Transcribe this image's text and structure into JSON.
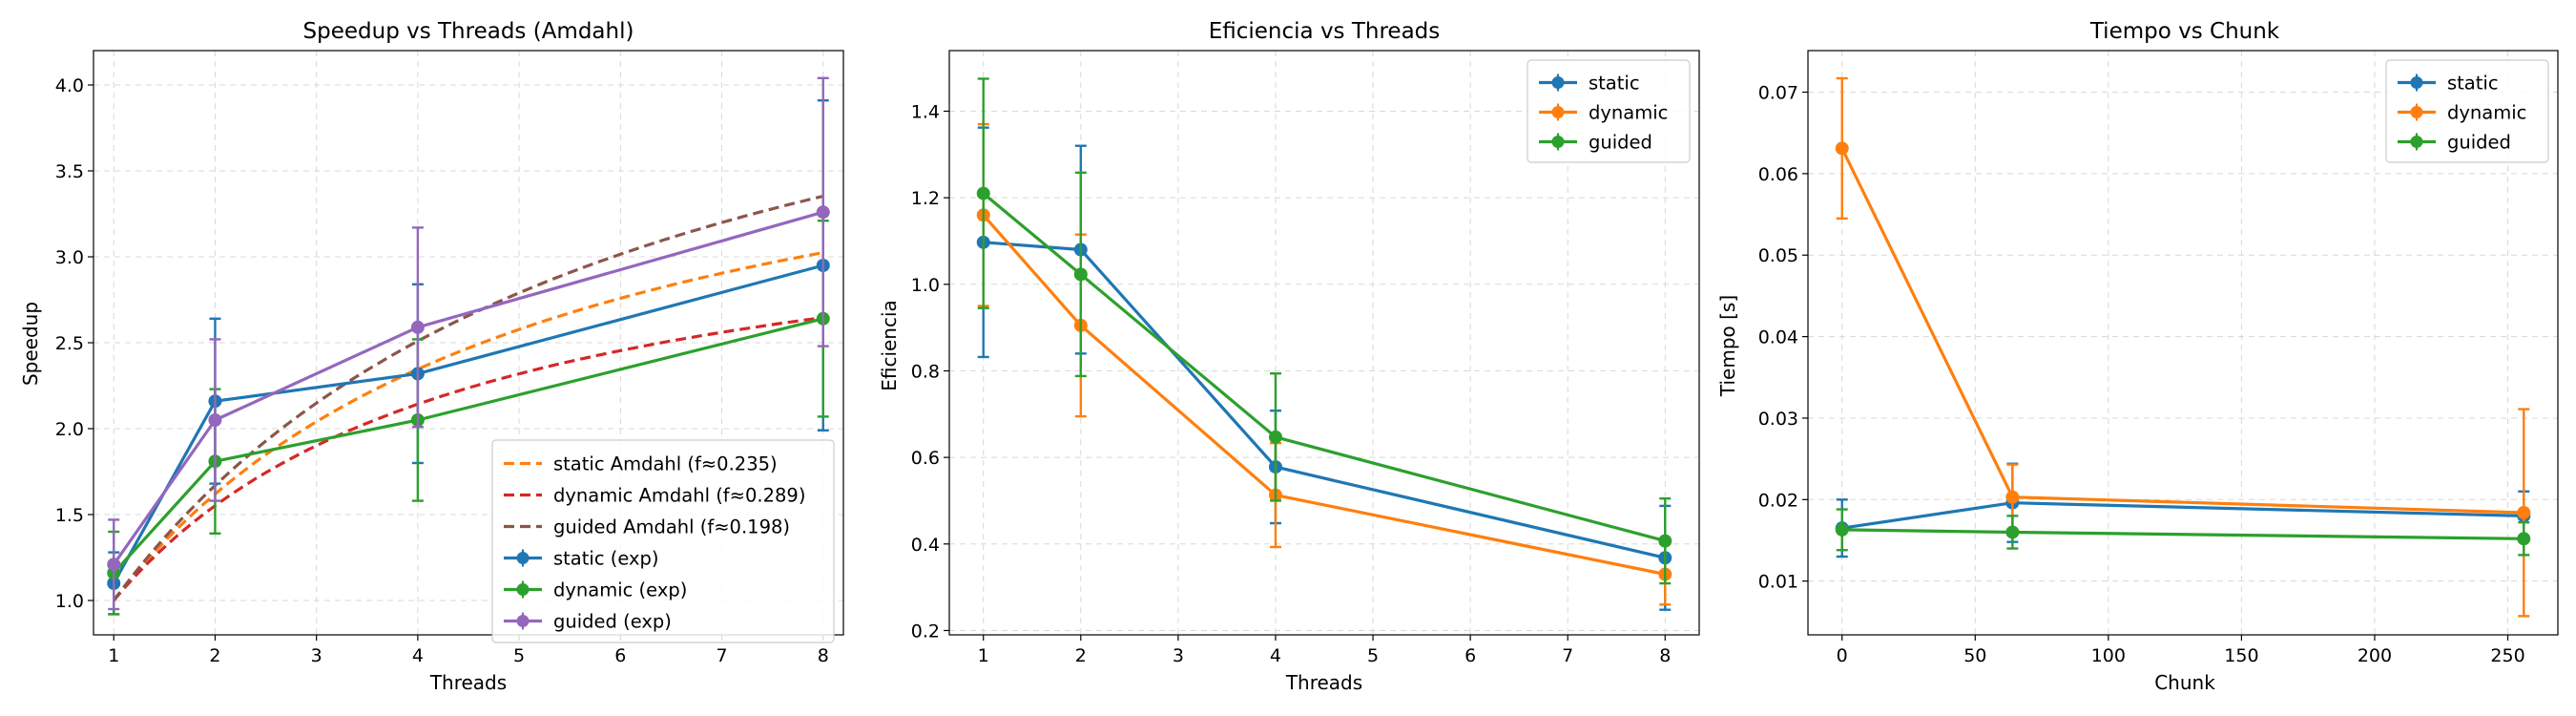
{
  "chart_data": [
    {
      "type": "line",
      "title": "Speedup vs Threads (Amdahl)",
      "xlabel": "Threads",
      "ylabel": "Speedup",
      "xlim": [
        0.8,
        8.2
      ],
      "ylim": [
        0.8,
        4.2
      ],
      "x_ticks": [
        1,
        2,
        3,
        4,
        5,
        6,
        7,
        8
      ],
      "y_ticks": [
        1.0,
        1.5,
        2.0,
        2.5,
        3.0,
        3.5,
        4.0
      ],
      "x_tick_labels": [
        "1",
        "2",
        "3",
        "4",
        "5",
        "6",
        "7",
        "8"
      ],
      "y_tick_labels": [
        "1.0",
        "1.5",
        "2.0",
        "2.5",
        "3.0",
        "3.5",
        "4.0"
      ],
      "grid": true,
      "legend_position": "lower-right",
      "curves": [
        {
          "name": "static Amdahl (f≈0.235)",
          "f": 0.235,
          "color": "#ff7f0e",
          "x_range": [
            1,
            8
          ]
        },
        {
          "name": "dynamic Amdahl (f≈0.289)",
          "f": 0.289,
          "color": "#d62728",
          "x_range": [
            1,
            8
          ]
        },
        {
          "name": "guided Amdahl (f≈0.198)",
          "f": 0.198,
          "color": "#8c564b",
          "x_range": [
            1,
            8
          ]
        }
      ],
      "series": [
        {
          "name": "static (exp)",
          "color": "#1f77b4",
          "x": [
            1,
            2,
            4,
            8
          ],
          "y": [
            1.1,
            2.16,
            2.32,
            2.95
          ],
          "err": [
            0.18,
            0.48,
            0.52,
            0.96
          ]
        },
        {
          "name": "dynamic (exp)",
          "color": "#2ca02c",
          "x": [
            1,
            2,
            4,
            8
          ],
          "y": [
            1.16,
            1.81,
            2.05,
            2.64
          ],
          "err": [
            0.24,
            0.42,
            0.47,
            0.57
          ]
        },
        {
          "name": "guided (exp)",
          "color": "#9467bd",
          "x": [
            1,
            2,
            4,
            8
          ],
          "y": [
            1.21,
            2.05,
            2.59,
            3.26
          ],
          "err": [
            0.26,
            0.47,
            0.58,
            0.78
          ]
        }
      ]
    },
    {
      "type": "line",
      "title": "Eficiencia vs Threads",
      "xlabel": "Threads",
      "ylabel": "Eficiencia",
      "xlim": [
        0.65,
        8.35
      ],
      "ylim": [
        0.19,
        1.54
      ],
      "x_ticks": [
        1,
        2,
        3,
        4,
        5,
        6,
        7,
        8
      ],
      "y_ticks": [
        0.2,
        0.4,
        0.6,
        0.8,
        1.0,
        1.2,
        1.4
      ],
      "x_tick_labels": [
        "1",
        "2",
        "3",
        "4",
        "5",
        "6",
        "7",
        "8"
      ],
      "y_tick_labels": [
        "0.2",
        "0.4",
        "0.6",
        "0.8",
        "1.0",
        "1.2",
        "1.4"
      ],
      "grid": true,
      "legend_position": "top-right",
      "series": [
        {
          "name": "static",
          "color": "#1f77b4",
          "x": [
            1,
            2,
            4,
            8
          ],
          "y": [
            1.097,
            1.08,
            0.578,
            0.368
          ],
          "err": [
            0.265,
            0.24,
            0.13,
            0.12
          ]
        },
        {
          "name": "dynamic",
          "color": "#ff7f0e",
          "x": [
            1,
            2,
            4,
            8
          ],
          "y": [
            1.16,
            0.905,
            0.513,
            0.33
          ],
          "err": [
            0.21,
            0.21,
            0.12,
            0.07
          ]
        },
        {
          "name": "guided",
          "color": "#2ca02c",
          "x": [
            1,
            2,
            4,
            8
          ],
          "y": [
            1.21,
            1.023,
            0.647,
            0.407
          ],
          "err": [
            0.265,
            0.235,
            0.147,
            0.098
          ]
        }
      ]
    },
    {
      "type": "line",
      "title": "Tiempo vs Chunk",
      "xlabel": "Chunk",
      "ylabel": "Tiempo [s]",
      "xlim": [
        -12.8,
        268.8
      ],
      "ylim": [
        0.0034,
        0.0751
      ],
      "x_ticks": [
        0,
        50,
        100,
        150,
        200,
        250
      ],
      "y_ticks": [
        0.01,
        0.02,
        0.03,
        0.04,
        0.05,
        0.06,
        0.07
      ],
      "x_tick_labels": [
        "0",
        "50",
        "100",
        "150",
        "200",
        "250"
      ],
      "y_tick_labels": [
        "0.01",
        "0.02",
        "0.03",
        "0.04",
        "0.05",
        "0.06",
        "0.07"
      ],
      "grid": true,
      "legend_position": "top-right",
      "series": [
        {
          "name": "static",
          "color": "#1f77b4",
          "x": [
            0,
            64,
            256
          ],
          "y": [
            0.0165,
            0.0196,
            0.018
          ],
          "err": [
            0.0035,
            0.0048,
            0.003
          ]
        },
        {
          "name": "dynamic",
          "color": "#ff7f0e",
          "x": [
            0,
            64,
            256
          ],
          "y": [
            0.0631,
            0.0203,
            0.0184
          ],
          "err": [
            0.0086,
            0.004,
            0.0127
          ]
        },
        {
          "name": "guided",
          "color": "#2ca02c",
          "x": [
            0,
            64,
            256
          ],
          "y": [
            0.0163,
            0.016,
            0.0152
          ],
          "err": [
            0.0025,
            0.002,
            0.002
          ]
        }
      ]
    }
  ]
}
